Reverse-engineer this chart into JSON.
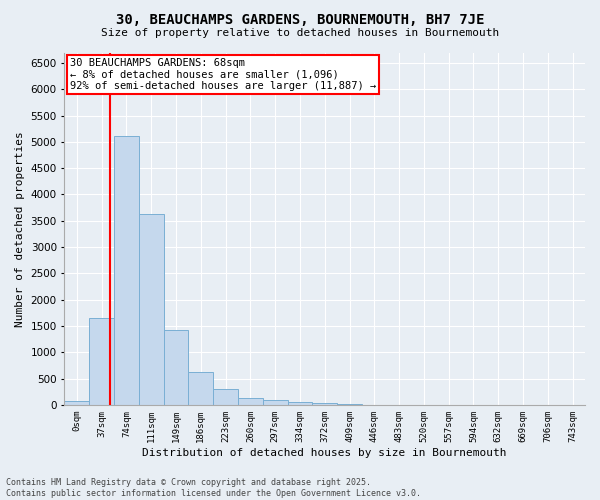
{
  "title": "30, BEAUCHAMPS GARDENS, BOURNEMOUTH, BH7 7JE",
  "subtitle": "Size of property relative to detached houses in Bournemouth",
  "xlabel": "Distribution of detached houses by size in Bournemouth",
  "ylabel": "Number of detached properties",
  "bin_labels": [
    "0sqm",
    "37sqm",
    "74sqm",
    "111sqm",
    "149sqm",
    "186sqm",
    "223sqm",
    "260sqm",
    "297sqm",
    "334sqm",
    "372sqm",
    "409sqm",
    "446sqm",
    "483sqm",
    "520sqm",
    "557sqm",
    "594sqm",
    "632sqm",
    "669sqm",
    "706sqm",
    "743sqm"
  ],
  "bar_values": [
    70,
    1650,
    5120,
    3620,
    1420,
    620,
    310,
    130,
    90,
    50,
    30,
    15,
    5,
    3,
    2,
    1,
    1,
    0,
    0,
    0,
    0
  ],
  "bar_color": "#c5d8ed",
  "bar_edgecolor": "#7aafd4",
  "ylim": [
    0,
    6700
  ],
  "yticks": [
    0,
    500,
    1000,
    1500,
    2000,
    2500,
    3000,
    3500,
    4000,
    4500,
    5000,
    5500,
    6000,
    6500
  ],
  "red_line_x": 68,
  "bin_width": 37,
  "annotation_title": "30 BEAUCHAMPS GARDENS: 68sqm",
  "annotation_line1": "← 8% of detached houses are smaller (1,096)",
  "annotation_line2": "92% of semi-detached houses are larger (11,887) →",
  "footer_line1": "Contains HM Land Registry data © Crown copyright and database right 2025.",
  "footer_line2": "Contains public sector information licensed under the Open Government Licence v3.0.",
  "bg_color": "#e8eef4",
  "plot_bg_color": "#e8eef4"
}
